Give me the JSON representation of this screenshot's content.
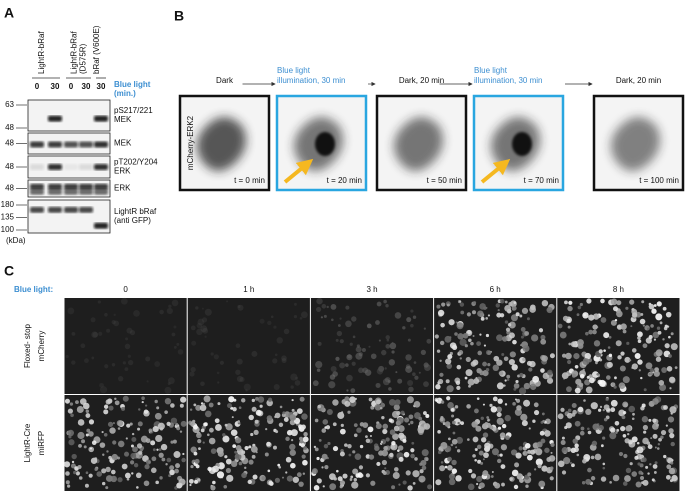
{
  "panel_a": {
    "label": "A",
    "constructs": [
      [
        "LightR-bRaf"
      ],
      [
        "LightR-bRaf",
        "(D575R)"
      ],
      [
        "bRaf (V600E)"
      ]
    ],
    "lanes": [
      "0",
      "30",
      "0",
      "30",
      "30"
    ],
    "condition": [
      "Blue light",
      "(min.)"
    ],
    "blots": [
      {
        "label": [
          "pS217/221",
          "MEK"
        ],
        "markers": [
          63,
          48
        ]
      },
      {
        "label": [
          "MEK"
        ],
        "markers": [
          48
        ]
      },
      {
        "label": [
          "pT202/Y204",
          "ERK"
        ],
        "markers": [
          48
        ]
      },
      {
        "label": [
          "ERK"
        ],
        "markers": [
          48
        ]
      },
      {
        "label": [
          "LightR bRaf",
          "(anti GFP)"
        ],
        "markers": [
          180,
          135,
          100
        ]
      }
    ],
    "unit": "(kDa)"
  },
  "panel_b": {
    "label": "B",
    "steps": [
      [
        "Dark"
      ],
      [
        "Blue light",
        "illumination, 30 min"
      ],
      [
        "Dark, 20 min"
      ],
      [
        "Blue light",
        "illumination, 30 min"
      ],
      [
        "Dark, 20 min"
      ]
    ],
    "channel": "mCherry-ERK2",
    "times": [
      "t = 0 min",
      "t = 20 min",
      "t = 50 min",
      "t = 70 min",
      "t = 100 min"
    ]
  },
  "panel_c": {
    "label": "C",
    "condition": "Blue light:",
    "columns": [
      "0",
      "1 h",
      "3 h",
      "6 h",
      "8 h"
    ],
    "rows": [
      [
        "Floxed- stop",
        "mCherry"
      ],
      [
        "LightR-Cre",
        "miRFP"
      ]
    ]
  }
}
